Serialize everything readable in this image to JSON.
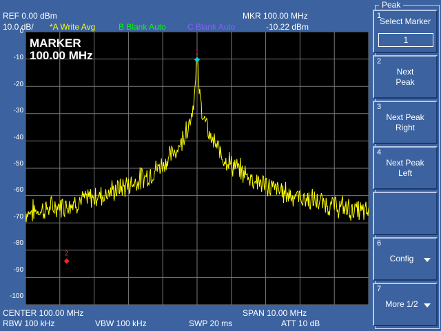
{
  "header": {
    "ref": "REF  0.00 dBm",
    "scale": "10.0 dB/",
    "trace_a": "*A Write Avg",
    "trace_b": "B Blank Auto",
    "trace_c": "C Blank Auto",
    "mkr_freq": "MKR 100.00 MHz",
    "mkr_level": "-10.22 dBm"
  },
  "colors": {
    "trace_a": "#ffff00",
    "trace_b": "#00ff00",
    "trace_c": "#8c5cff",
    "marker_active": "#00d8d8",
    "marker_inactive": "#ff2020"
  },
  "y_ticks": [
    "0",
    "-10",
    "-20",
    "-30",
    "-40",
    "-50",
    "-60",
    "-70",
    "-80",
    "-90",
    "-100"
  ],
  "marker_readout": {
    "title": "MARKER",
    "value": "100.00 MHz"
  },
  "markers": [
    {
      "label": "1",
      "freq_mhz": 100.0,
      "level_dbm": -10.22
    },
    {
      "label": "2",
      "freq_mhz": 96.2,
      "level_dbm": -84
    }
  ],
  "footer": {
    "center": "CENTER 100.00 MHz",
    "span": "SPAN 10.00 MHz",
    "rbw": "RBW  100 kHz",
    "vbw": "VBW  100 kHz",
    "swp": "SWP  20 ms",
    "att": "ATT 10 dB"
  },
  "softkey_panel": {
    "title": "Peak",
    "keys": [
      {
        "num": "1",
        "label": "Select Marker",
        "value": "1"
      },
      {
        "num": "2",
        "label": "Next\nPeak"
      },
      {
        "num": "3",
        "label": "Next Peak\nRight"
      },
      {
        "num": "4",
        "label": "Next Peak\nLeft"
      },
      {
        "num": "",
        "label": ""
      },
      {
        "num": "6",
        "label": "Config"
      },
      {
        "num": "7",
        "label": "More 1/2"
      }
    ]
  }
}
